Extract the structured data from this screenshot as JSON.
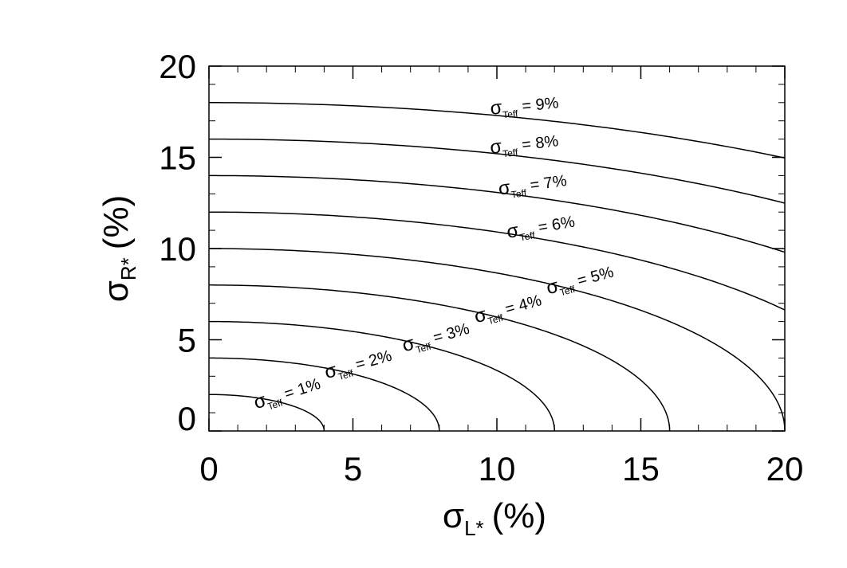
{
  "chart_data": {
    "type": "contour",
    "x_label": {
      "symbol": "σ",
      "subscript": "L*",
      "unit": "(%)"
    },
    "y_label": {
      "symbol": "σ",
      "subscript": "R*",
      "unit": "(%)"
    },
    "contour_label": {
      "symbol": "σ",
      "subscript": "Teff"
    },
    "levels": [
      1,
      2,
      3,
      4,
      5,
      6,
      7,
      8,
      9
    ],
    "value_labels": [
      "= 1%",
      "= 2%",
      "= 3%",
      "= 4%",
      "= 5%",
      "= 6%",
      "= 7%",
      "= 8%",
      "= 9%"
    ],
    "color": "#000000",
    "xlim": [
      0,
      20
    ],
    "xticks": [
      0,
      5,
      10,
      15,
      20
    ],
    "ylim": [
      0,
      20
    ],
    "yticks": [
      0,
      5,
      10,
      15,
      20
    ]
  }
}
